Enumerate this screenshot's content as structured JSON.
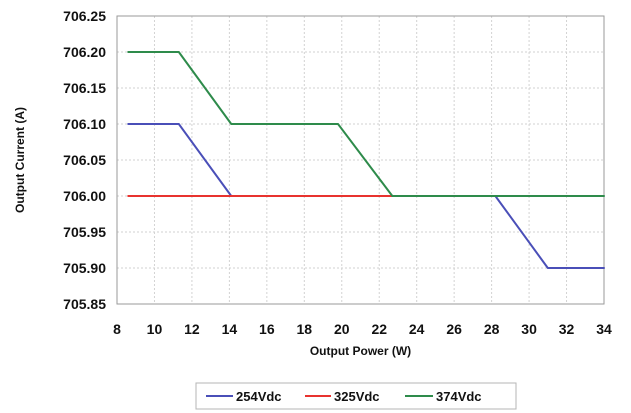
{
  "chart_data": {
    "type": "line",
    "xlabel": "Output Power (W)",
    "ylabel": "Output Current (A)",
    "xlim": [
      8,
      34
    ],
    "ylim": [
      705.85,
      706.25
    ],
    "xticks": [
      8,
      10,
      12,
      14,
      16,
      18,
      20,
      22,
      24,
      26,
      28,
      30,
      32,
      34
    ],
    "yticks": [
      705.85,
      705.9,
      705.95,
      706.0,
      706.05,
      706.1,
      706.15,
      706.2,
      706.25
    ],
    "xtick_labels": [
      "8",
      "10",
      "12",
      "14",
      "16",
      "18",
      "20",
      "22",
      "24",
      "26",
      "28",
      "30",
      "32",
      "34"
    ],
    "ytick_labels": [
      "705.85",
      "705.90",
      "705.95",
      "706.00",
      "706.05",
      "706.10",
      "706.15",
      "706.20",
      "706.25"
    ],
    "grid": true,
    "legend_position": "bottom",
    "series": [
      {
        "name": "254Vdc",
        "color": "#4a4fb8",
        "x": [
          8.6,
          11.3,
          14.1,
          28.2,
          31.0,
          34.0
        ],
        "y": [
          706.1,
          706.1,
          706.0,
          706.0,
          705.9,
          705.9
        ]
      },
      {
        "name": "325Vdc",
        "color": "#e8332f",
        "x": [
          8.6,
          22.7
        ],
        "y": [
          706.0,
          706.0
        ]
      },
      {
        "name": "374Vdc",
        "color": "#2e8b4b",
        "x": [
          8.6,
          11.3,
          14.1,
          19.8,
          22.7,
          34.0
        ],
        "y": [
          706.2,
          706.2,
          706.1,
          706.1,
          706.0,
          706.0
        ]
      }
    ]
  }
}
